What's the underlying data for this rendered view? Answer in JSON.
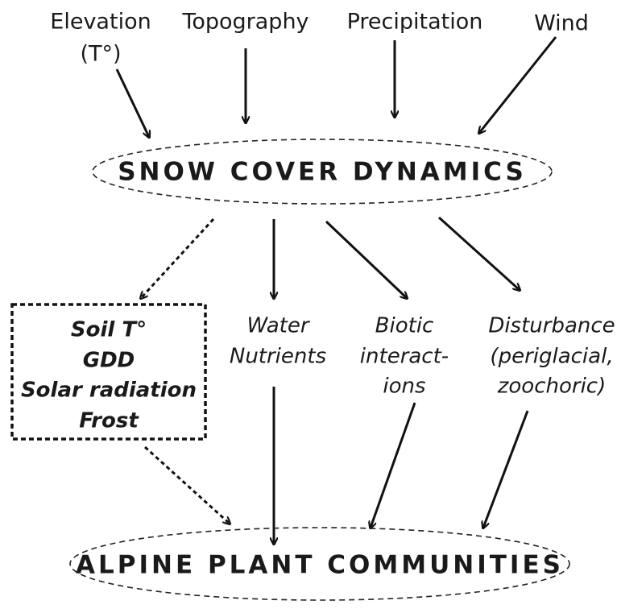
{
  "drivers": [
    {
      "lines": [
        "Elevation",
        "(T°)"
      ]
    },
    {
      "lines": [
        "Topography"
      ]
    },
    {
      "lines": [
        "Precipitation"
      ]
    },
    {
      "lines": [
        "Wind"
      ]
    }
  ],
  "hub": "SNOW COVER DYNAMICS",
  "microclimate": {
    "lines": [
      "Soil T°",
      "GDD",
      "Solar radiation",
      "Frost"
    ]
  },
  "factors": [
    {
      "lines": [
        "Water",
        "Nutrients"
      ]
    },
    {
      "lines": [
        "Biotic",
        "interact-",
        "ions"
      ]
    },
    {
      "lines": [
        "Disturbance",
        "(periglacial,",
        "zoochoric)"
      ]
    }
  ],
  "outcome": "ALPINE PLANT COMMUNITIES"
}
